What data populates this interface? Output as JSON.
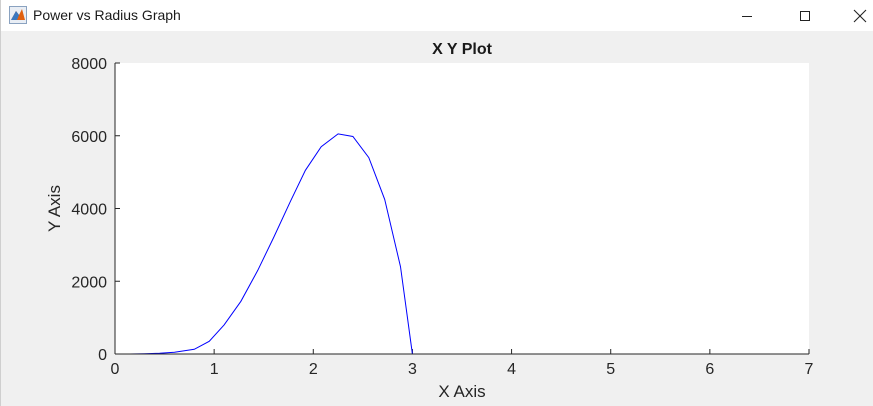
{
  "window": {
    "title": "Power vs Radius Graph",
    "icons": {
      "app": "matlab-figure-icon",
      "minimize": "minimize-icon",
      "maximize": "maximize-icon",
      "close": "close-icon"
    }
  },
  "chart_data": {
    "type": "line",
    "title": "X Y Plot",
    "xlabel": "X Axis",
    "ylabel": "Y Axis",
    "xlim": [
      0,
      7
    ],
    "ylim": [
      0,
      8000
    ],
    "x_ticks": [
      "0",
      "1",
      "2",
      "3",
      "4",
      "5",
      "6",
      "7"
    ],
    "y_ticks": [
      "0",
      "2000",
      "4000",
      "6000",
      "8000"
    ],
    "grid": false,
    "legend": "none",
    "series": [
      {
        "color": "#0000ff",
        "x": [
          0,
          0.15,
          0.3,
          0.45,
          0.6,
          0.75,
          0.8,
          0.95,
          1.1,
          1.27,
          1.44,
          1.6,
          1.77,
          1.92,
          2.08,
          2.25,
          2.4,
          2.56,
          2.72,
          2.88,
          3.0
        ],
        "y": [
          0,
          1,
          6,
          20,
          50,
          110,
          130,
          350,
          800,
          1450,
          2300,
          3200,
          4200,
          5050,
          5700,
          6050,
          5980,
          5400,
          4250,
          2400,
          0
        ]
      }
    ]
  }
}
